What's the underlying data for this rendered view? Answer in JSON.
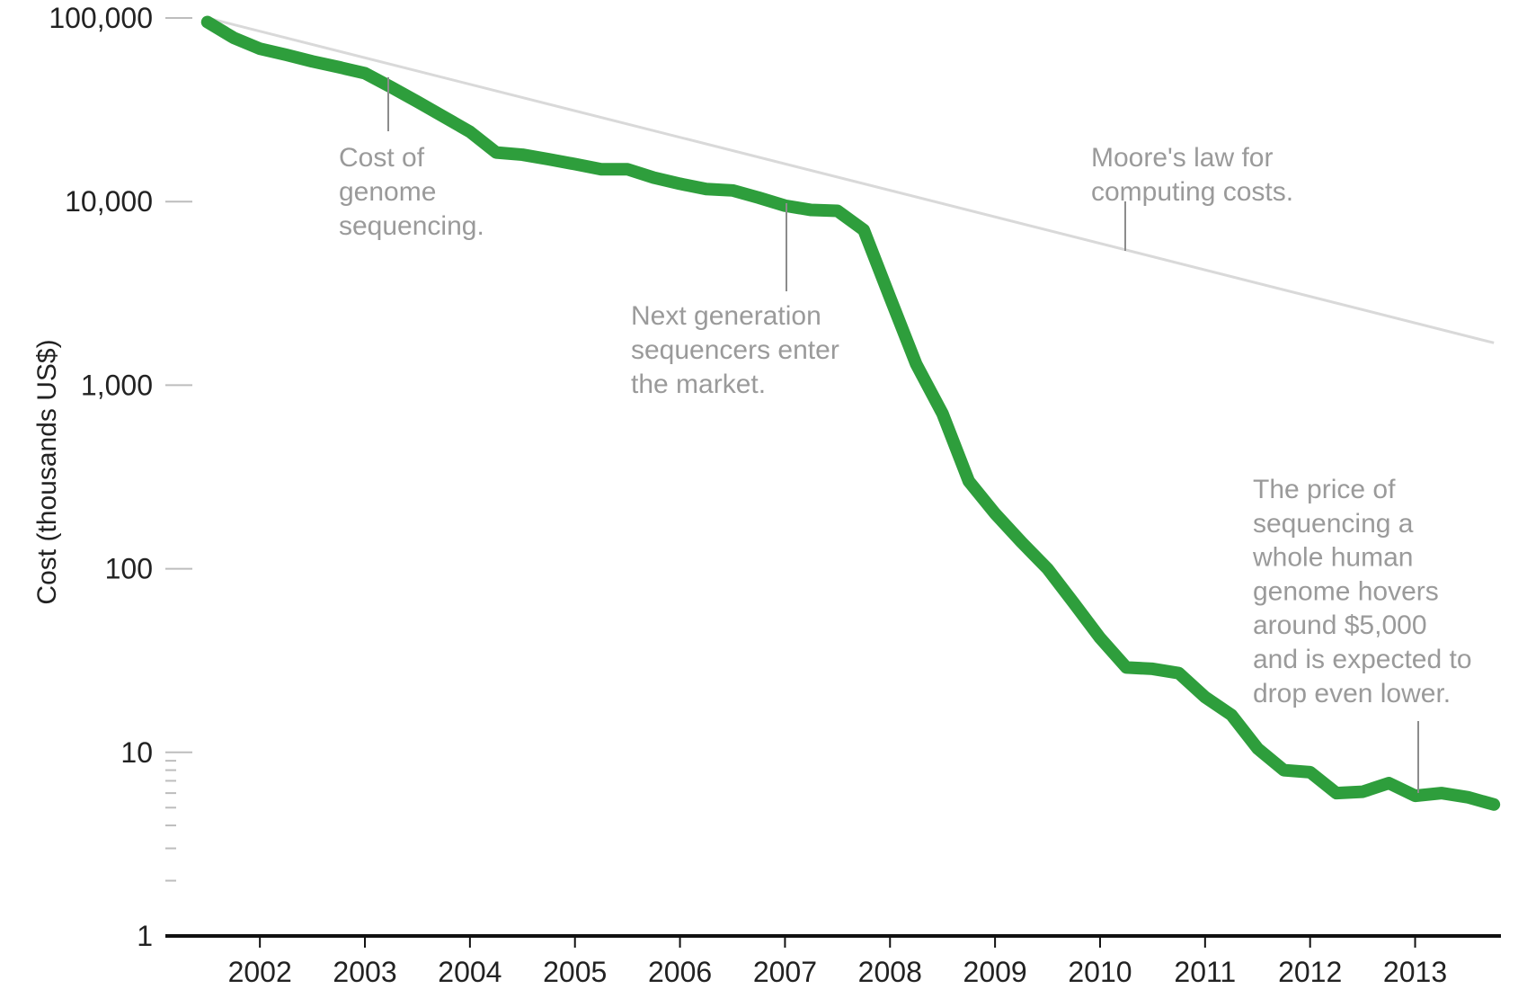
{
  "chart_data": {
    "type": "line",
    "ylabel": "Cost (thousands US$)",
    "y_scale": "log",
    "ylim": [
      1,
      100000
    ],
    "xlim": [
      2001.1,
      2013.8
    ],
    "y_ticks": [
      {
        "value": 100000,
        "label": "100,000"
      },
      {
        "value": 10000,
        "label": "10,000"
      },
      {
        "value": 1000,
        "label": "1,000"
      },
      {
        "value": 100,
        "label": "100"
      },
      {
        "value": 10,
        "label": "10"
      },
      {
        "value": 1,
        "label": "1"
      }
    ],
    "minor_y_ticks": [
      2,
      3,
      4,
      5,
      6,
      7,
      8,
      9
    ],
    "x_ticks": [
      {
        "value": 2002,
        "label": "2002"
      },
      {
        "value": 2003,
        "label": "2003"
      },
      {
        "value": 2004,
        "label": "2004"
      },
      {
        "value": 2005,
        "label": "2005"
      },
      {
        "value": 2006,
        "label": "2006"
      },
      {
        "value": 2007,
        "label": "2007"
      },
      {
        "value": 2008,
        "label": "2008"
      },
      {
        "value": 2009,
        "label": "2009"
      },
      {
        "value": 2010,
        "label": "2010"
      },
      {
        "value": 2011,
        "label": "2011"
      },
      {
        "value": 2012,
        "label": "2012"
      },
      {
        "value": 2013,
        "label": "2013"
      }
    ],
    "grid": false,
    "series": [
      {
        "color": "#2e9e3c",
        "points": [
          [
            2001.5,
            95000
          ],
          [
            2001.75,
            78000
          ],
          [
            2002.0,
            68000
          ],
          [
            2002.25,
            63000
          ],
          [
            2002.5,
            58000
          ],
          [
            2002.75,
            54000
          ],
          [
            2003.0,
            50000
          ],
          [
            2003.25,
            42000
          ],
          [
            2003.5,
            35000
          ],
          [
            2003.75,
            29000
          ],
          [
            2004.0,
            24000
          ],
          [
            2004.25,
            18500
          ],
          [
            2004.5,
            18000
          ],
          [
            2004.75,
            17000
          ],
          [
            2005.0,
            16000
          ],
          [
            2005.25,
            15000
          ],
          [
            2005.5,
            15000
          ],
          [
            2005.75,
            13500
          ],
          [
            2006.0,
            12500
          ],
          [
            2006.25,
            11700
          ],
          [
            2006.5,
            11500
          ],
          [
            2006.75,
            10500
          ],
          [
            2007.0,
            9500
          ],
          [
            2007.25,
            9000
          ],
          [
            2007.5,
            8900
          ],
          [
            2007.75,
            7000
          ],
          [
            2008.0,
            3000
          ],
          [
            2008.25,
            1300
          ],
          [
            2008.5,
            700
          ],
          [
            2008.75,
            300
          ],
          [
            2009.0,
            200
          ],
          [
            2009.25,
            140
          ],
          [
            2009.5,
            100
          ],
          [
            2009.75,
            65
          ],
          [
            2010.0,
            42
          ],
          [
            2010.25,
            29
          ],
          [
            2010.5,
            28.5
          ],
          [
            2010.75,
            27
          ],
          [
            2011.0,
            20
          ],
          [
            2011.25,
            16
          ],
          [
            2011.5,
            10.5
          ],
          [
            2011.75,
            8
          ],
          [
            2012.0,
            7.8
          ],
          [
            2012.25,
            6
          ],
          [
            2012.5,
            6.1
          ],
          [
            2012.75,
            6.8
          ],
          [
            2013.0,
            5.8
          ],
          [
            2013.25,
            6
          ],
          [
            2013.5,
            5.7
          ],
          [
            2013.75,
            5.2
          ]
        ]
      },
      {
        "color": "#d9d9d9",
        "points": [
          [
            2001.5,
            100000
          ],
          [
            2013.75,
            1700
          ]
        ]
      }
    ],
    "annotations": [
      {
        "id": "genome",
        "text": [
          "Cost of",
          "genome",
          "sequencing."
        ],
        "pointer_x": 2003.2,
        "pointer_y": 50000
      },
      {
        "id": "nextgen",
        "text": [
          "Next generation",
          "sequencers enter",
          "the market."
        ],
        "pointer_x": 2007.0,
        "pointer_y": 9500
      },
      {
        "id": "moore",
        "text": [
          "Moore's law for",
          "computing costs."
        ],
        "pointer_x": 2010.2,
        "pointer_y": 5000
      },
      {
        "id": "price",
        "text": [
          "The price of",
          "sequencing a",
          "whole human",
          "genome hovers",
          "around $5,000",
          "and is expected to",
          "drop even lower."
        ],
        "pointer_x": 2013.0,
        "pointer_y": 5.8
      }
    ]
  }
}
